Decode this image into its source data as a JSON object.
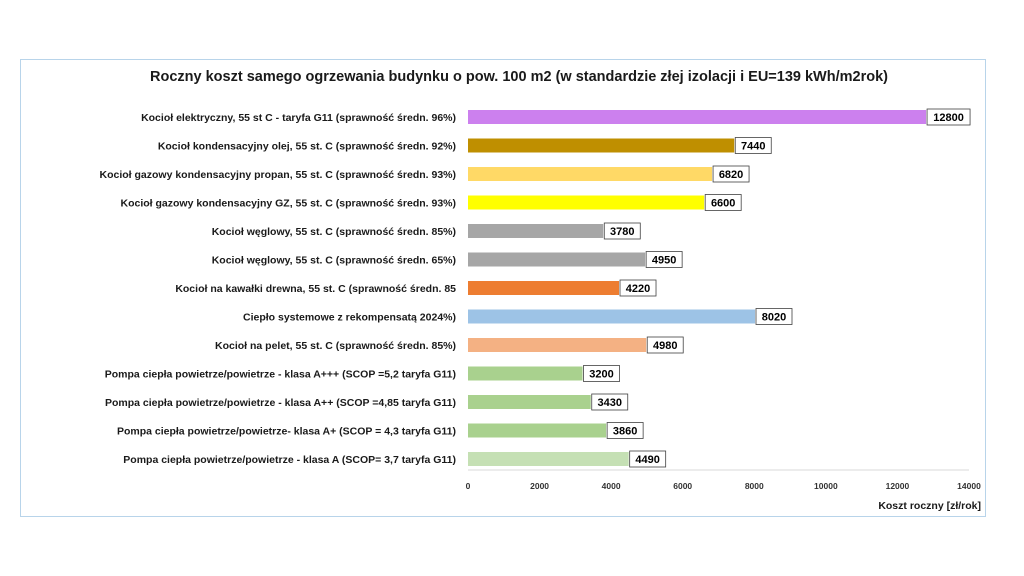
{
  "chart_data": {
    "type": "bar",
    "orientation": "horizontal",
    "title": "Roczny koszt samego ogrzewania budynku o pow. 100 m2 (w standardzie złej izolacji i EU=139 kWh/m2rok)",
    "xlabel": "Koszt roczny [zł/rok]",
    "ylabel": "",
    "xlim": [
      0,
      14000
    ],
    "x_ticks": [
      "0",
      "2000",
      "4000",
      "6000",
      "8000",
      "10000",
      "12000",
      "14000"
    ],
    "grid": false,
    "legend": "none",
    "categories": [
      "Kocioł  elektryczny, 55 st C -  taryfa G11 (sprawność średn. 96%)",
      "Kocioł  kondensacyjny olej, 55 st. C (sprawność średn. 92%)",
      "Kocioł gazowy kondensacyjny propan, 55 st. C (sprawność średn. 93%)",
      "Kocioł gazowy kondensacyjny GZ, 55 st. C (sprawność średn. 93%)",
      "Kocioł węglowy,  55 st. C (sprawność średn. 85%)",
      "Kocioł węglowy, 55 st. C (sprawność średn. 65%)",
      "Kocioł na kawałki drewna, 55 st. C (sprawność średn. 85",
      "Ciepło systemowe z rekompensatą 2024%)",
      "Kocioł na pelet, 55 st. C (sprawność średn. 85%)",
      "Pompa ciepła powietrze/powietrze -  klasa A+++ (SCOP =5,2 taryfa G11)",
      "Pompa ciepła powietrze/powietrze - klasa A++ (SCOP =4,85 taryfa G11)",
      "Pompa ciepła powietrze/powietrze-  klasa A+ (SCOP = 4,3 taryfa G11)",
      "Pompa ciepła powietrze/powietrze - klasa A (SCOP= 3,7 taryfa G11)"
    ],
    "values": [
      12800,
      7440,
      6820,
      6600,
      3780,
      4950,
      4220,
      8020,
      4980,
      3200,
      3430,
      3860,
      4490
    ],
    "bar_colors": [
      "#cc80ee",
      "#bf8f00",
      "#ffd966",
      "#ffff00",
      "#a6a6a6",
      "#a6a6a6",
      "#ed7d31",
      "#9dc3e6",
      "#f4b183",
      "#a9d18e",
      "#a9d18e",
      "#a9d18e",
      "#c5e0b4"
    ]
  }
}
